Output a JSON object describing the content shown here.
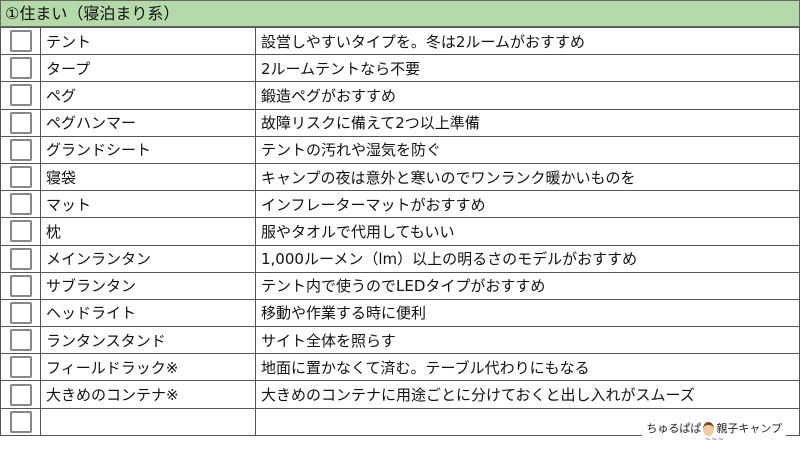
{
  "section_title": "①住まい（寝泊まり系）",
  "items": [
    {
      "name": "テント",
      "note": "設営しやすいタイプを。冬は2ルームがおすすめ"
    },
    {
      "name": "タープ",
      "note": "2ルームテントなら不要"
    },
    {
      "name": "ペグ",
      "note": "鍛造ペグがおすすめ"
    },
    {
      "name": "ペグハンマー",
      "note": "故障リスクに備えて2つ以上準備"
    },
    {
      "name": "グランドシート",
      "note": "テントの汚れや湿気を防ぐ"
    },
    {
      "name": "寝袋",
      "note": "キャンプの夜は意外と寒いのでワンランク暖かいものを"
    },
    {
      "name": "マット",
      "note": "インフレーターマットがおすすめ"
    },
    {
      "name": "枕",
      "note": "服やタオルで代用してもいい"
    },
    {
      "name": "メインランタン",
      "note": "1,000ルーメン（lm）以上の明るさのモデルがおすすめ"
    },
    {
      "name": "サブランタン",
      "note": "テント内で使うのでLEDタイプがおすすめ"
    },
    {
      "name": "ヘッドライト",
      "note": "移動や作業する時に便利"
    },
    {
      "name": "ランタンスタンド",
      "note": "サイト全体を照らす"
    },
    {
      "name": "フィールドラック※",
      "note": "地面に置かなくて済む。テーブル代わりにもなる"
    },
    {
      "name": "大きめのコンテナ※",
      "note": "大きめのコンテナに用途ごとに分けておくと出し入れがスムーズ"
    },
    {
      "name": "",
      "note": ""
    }
  ],
  "logo": {
    "text_left": "ちゅるぱぱ",
    "text_right": "親子キャンプ"
  },
  "colors": {
    "header_bg": "#b5d9a8",
    "border": "#555555"
  }
}
